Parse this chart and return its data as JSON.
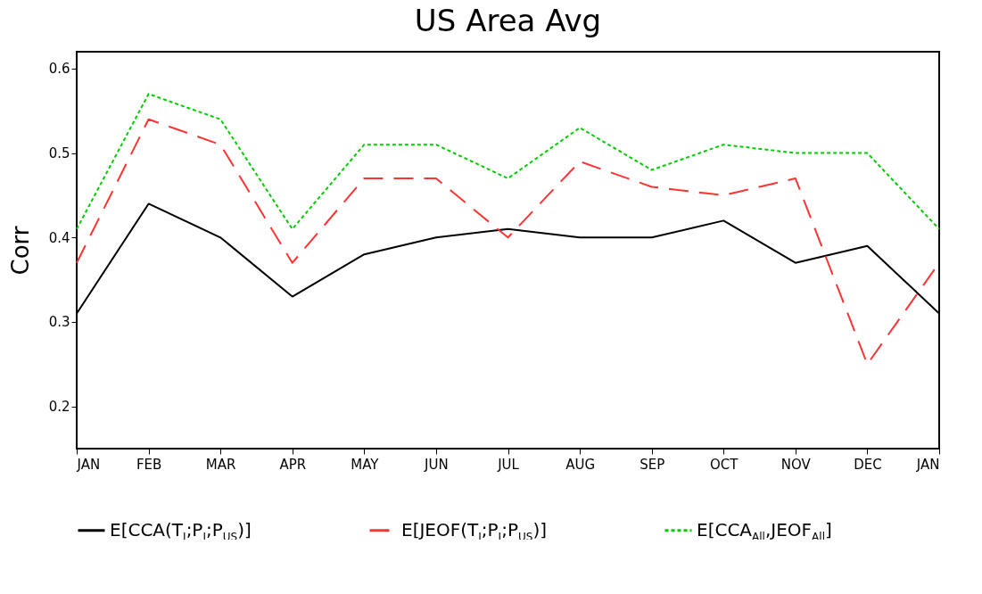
{
  "chart_data": {
    "type": "line",
    "title": "US Area Avg",
    "ylabel": "Corr",
    "categories": [
      "JAN",
      "FEB",
      "MAR",
      "APR",
      "MAY",
      "JUN",
      "JUL",
      "AUG",
      "SEP",
      "OCT",
      "NOV",
      "DEC",
      "JAN"
    ],
    "series": [
      {
        "name": "E[CCA(T$_{I}$;P$_{I}$;P$_{US}$)]",
        "color": "#000000",
        "line_style": "solid",
        "values": [
          0.31,
          0.44,
          0.4,
          0.33,
          0.38,
          0.4,
          0.41,
          0.4,
          0.4,
          0.42,
          0.37,
          0.39,
          0.31
        ]
      },
      {
        "name": "E[JEOF(T$_{I}$;P$_{I}$;P$_{US}$)]",
        "color": "#ff3333",
        "line_style": "dashed",
        "values": [
          0.37,
          0.54,
          0.51,
          0.37,
          0.47,
          0.47,
          0.4,
          0.49,
          0.46,
          0.45,
          0.47,
          0.25,
          0.37
        ]
      },
      {
        "name": "E[CCA$_{All}$,JEOF$_{All}$]",
        "color": "#00cc00",
        "line_style": "dotted",
        "values": [
          0.41,
          0.57,
          0.54,
          0.41,
          0.51,
          0.51,
          0.47,
          0.53,
          0.48,
          0.51,
          0.5,
          0.5,
          0.41
        ]
      }
    ],
    "ylim": [
      0.15,
      0.62
    ],
    "yticks": [
      0.2,
      0.3,
      0.4,
      0.5,
      0.6
    ],
    "grid": false,
    "legend": "bottom",
    "marker": "none"
  }
}
